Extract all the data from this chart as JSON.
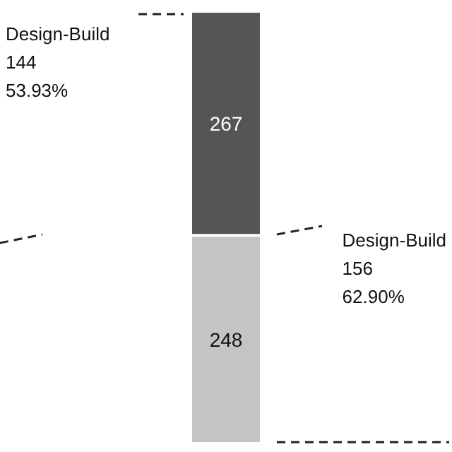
{
  "chart_data": {
    "type": "bar",
    "stacked": true,
    "categories": [
      null
    ],
    "series": [
      {
        "color": "#c4c4c4",
        "values": [
          248
        ]
      },
      {
        "color": "#555555",
        "values": [
          267
        ]
      }
    ],
    "data_labels": true,
    "annotations": [
      "Design-Build\n144\n53.93%",
      "Design-Build\n156\n62.90%"
    ]
  }
}
